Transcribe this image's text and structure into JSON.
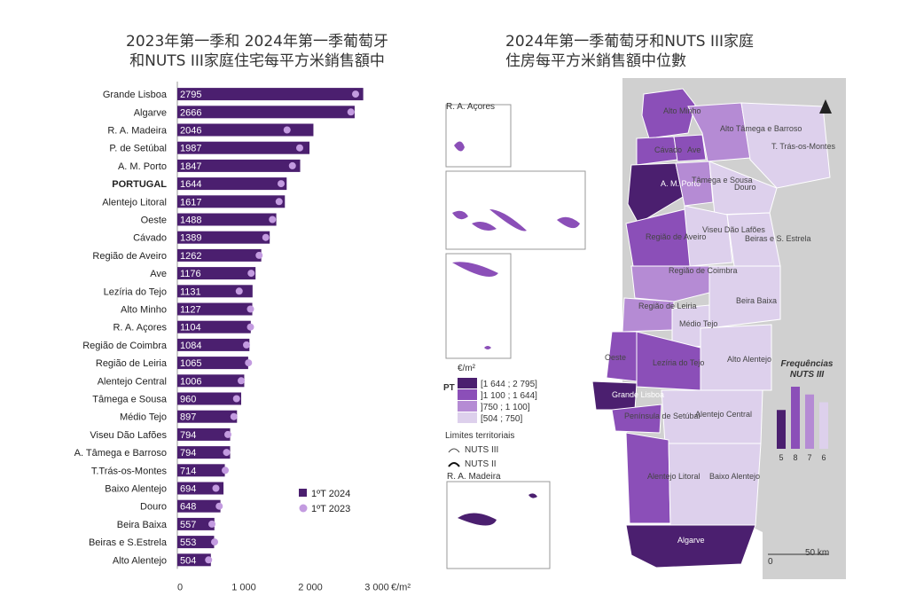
{
  "bar_chart": {
    "title_line1": "2023年第一季和 2024年第一季葡萄牙",
    "title_line2": "和NUTS III家庭住宅每平方米銷售額中"
  },
  "map": {
    "title_line1": "2024年第一季葡萄牙和NUTS III家庭",
    "title_line2": "住房每平方米銷售額中位數",
    "inset_acores": "R. A. Açores",
    "inset_madeira": "R. A. Madeira",
    "unit": "€/m²",
    "pt_label": "PT",
    "legend_classes": [
      "[1 644 ; 2 795]",
      "]1 100 ; 1 644]",
      "]750 ; 1 100]",
      "[504 ; 750]"
    ],
    "limits_title": "Limites territoriais",
    "limits": [
      "NUTS III",
      "NUTS II"
    ],
    "freq_title": "Frequências",
    "freq_subtitle": "NUTS III",
    "freq_values": [
      5,
      8,
      7,
      6
    ],
    "scale": "50 km",
    "scale_zero": "0",
    "colors": [
      "#4b1f6f",
      "#8b4fb8",
      "#b58bd4",
      "#ddd0ec"
    ],
    "region_labels": [
      "Alto Minho",
      "Cávado",
      "Ave",
      "Alto Tâmega e Barroso",
      "T. Trás-os-Montes",
      "A. M. Porto",
      "Tâmega e Sousa",
      "Douro",
      "Viseu Dão Lafões",
      "Região de Aveiro",
      "Beiras e S. Estrela",
      "Região de Coimbra",
      "Região de Leiria",
      "Beira Baixa",
      "Médio Tejo",
      "Oeste",
      "Lezíria do Tejo",
      "Alto Alentejo",
      "Grande Lisboa",
      "Península de Setúbal",
      "Alentejo Central",
      "Alentejo Litoral",
      "Baixo Alentejo",
      "Algarve"
    ]
  },
  "chart_data": {
    "type": "bar",
    "title": "2023年第一季和 2024年第一季葡萄牙和NUTS III家庭住宅每平方米銷售額中",
    "categories": [
      "Grande Lisboa",
      "Algarve",
      "R. A. Madeira",
      "P. de Setúbal",
      "A. M. Porto",
      "PORTUGAL",
      "Alentejo Litoral",
      "Oeste",
      "Cávado",
      "Região de Aveiro",
      "Ave",
      "Lezíria do Tejo",
      "Alto Minho",
      "R. A. Açores",
      "Região de Coimbra",
      "Região de Leiria",
      "Alentejo Central",
      "Tâmega e Sousa",
      "Médio Tejo",
      "Viseu Dão Lafões",
      "A. Tâmega e Barroso",
      "T.Trás-os-Montes",
      "Baixo Alentejo",
      "Douro",
      "Beira Baixa",
      "Beiras e S.Estrela",
      "Alto Alentejo"
    ],
    "series": [
      {
        "name": "1ºT 2024",
        "values": [
          2795,
          2666,
          2046,
          1987,
          1847,
          1644,
          1617,
          1488,
          1389,
          1262,
          1176,
          1131,
          1127,
          1104,
          1084,
          1065,
          1006,
          960,
          897,
          794,
          794,
          714,
          694,
          648,
          557,
          553,
          504
        ],
        "color": "#4b1f6f"
      },
      {
        "name": "1ºT 2023",
        "values": [
          2680,
          2610,
          1650,
          1840,
          1730,
          1560,
          1530,
          1430,
          1330,
          1230,
          1110,
          930,
          1100,
          1100,
          1040,
          1070,
          960,
          890,
          850,
          760,
          740,
          720,
          580,
          630,
          520,
          560,
          470
        ],
        "color": "#c39be0"
      }
    ],
    "xticks": [
      "0",
      "1 000",
      "2 000",
      "3 000"
    ],
    "xunit": "€/m²",
    "xlim": [
      0,
      3000
    ],
    "legend_position": "bottom-right"
  }
}
